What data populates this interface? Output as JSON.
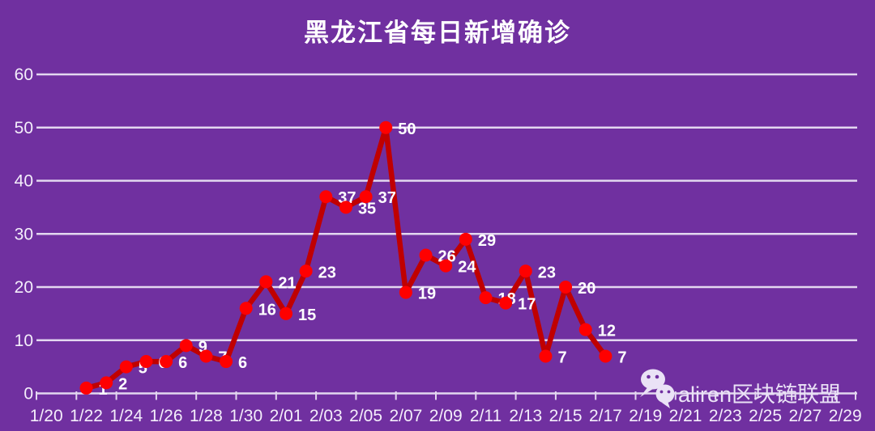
{
  "chart_data": {
    "type": "line",
    "title": "黑龙江省每日新增确诊",
    "x": [
      "1/22",
      "1/23",
      "1/24",
      "1/25",
      "1/26",
      "1/27",
      "1/28",
      "1/29",
      "1/30",
      "1/31",
      "2/01",
      "2/02",
      "2/03",
      "2/04",
      "2/05",
      "2/06",
      "2/07",
      "2/08",
      "2/09",
      "2/10",
      "2/11",
      "2/12",
      "2/13",
      "2/14",
      "2/15",
      "2/16",
      "2/17"
    ],
    "values": [
      1,
      2,
      5,
      6,
      6,
      9,
      7,
      6,
      16,
      21,
      15,
      23,
      37,
      35,
      37,
      50,
      19,
      26,
      24,
      29,
      18,
      17,
      23,
      7,
      20,
      12,
      7
    ],
    "data_labels": [
      1,
      2,
      5,
      6,
      6,
      9,
      7,
      6,
      16,
      21,
      15,
      23,
      37,
      35,
      37,
      50,
      19,
      26,
      24,
      29,
      18,
      17,
      23,
      7,
      20,
      12,
      7
    ],
    "x_axis_tick_labels": [
      "1/20",
      "1/22",
      "1/24",
      "1/26",
      "1/28",
      "1/30",
      "2/01",
      "2/03",
      "2/05",
      "2/07",
      "2/09",
      "2/11",
      "2/13",
      "2/15",
      "2/17",
      "2/19",
      "2/21",
      "2/23",
      "2/25",
      "2/27",
      "2/29"
    ],
    "y_ticks": [
      0,
      10,
      20,
      30,
      40,
      50,
      60
    ],
    "ylim": [
      0,
      60
    ],
    "xlabel": "",
    "ylabel": "",
    "grid": "horizontal",
    "legend": "none",
    "colors": {
      "background": "#7030A0",
      "line": "#C00000",
      "marker": "#FF0000",
      "data_label": "#FFFFFF",
      "grid": "#E3D7F0",
      "axis_text": "#F4EEFB",
      "title": "#FFFFFF",
      "watermark": "#EAE2F6"
    }
  },
  "watermark": {
    "icon": "wechat-icon",
    "text": "aliren区块链联盟"
  }
}
